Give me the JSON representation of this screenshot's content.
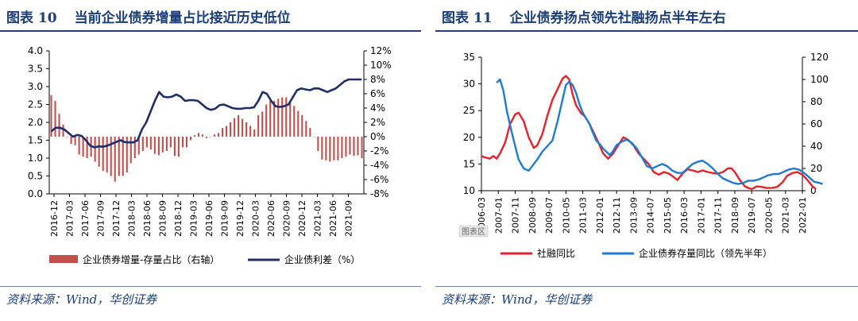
{
  "colors": {
    "title": "#1a3f7a",
    "bar": "#c0504d",
    "line_navy": "#1f2d6b",
    "line_red": "#e8202a",
    "line_blue": "#1f7ad0",
    "watermark_bg": "#e8e8e8"
  },
  "left": {
    "figure_no": "图表 10",
    "title": "当前企业债券增量占比接近历史低位",
    "source": "资料来源：Wind，华创证券"
  },
  "right": {
    "figure_no": "图表 11",
    "title": "企业债券扬点领先社融扬点半年左右",
    "source": "资料来源：Wind，华创证券",
    "watermark": "图表区"
  },
  "chart_data": [
    {
      "type": "bar+line",
      "title": "当前企业债券增量占比接近历史低位",
      "x_tick_labels": [
        "2016-12",
        "2017-03",
        "2017-06",
        "2017-09",
        "2017-12",
        "2018-03",
        "2018-06",
        "2018-09",
        "2018-12",
        "2019-03",
        "2019-06",
        "2019-09",
        "2019-12",
        "2020-03",
        "2020-06",
        "2020-09",
        "2020-12",
        "2021-03",
        "2021-06",
        "2021-09"
      ],
      "x_start": "2016-12",
      "left_axis": {
        "range": [
          0.0,
          4.0
        ],
        "ticks": [
          "0.0",
          "0.5",
          "1.0",
          "1.5",
          "2.0",
          "2.5",
          "3.0",
          "3.5",
          "4.0"
        ]
      },
      "right_axis": {
        "range": [
          -8,
          12
        ],
        "ticks": [
          "-8%",
          "-6%",
          "-4%",
          "-2%",
          "0%",
          "2%",
          "4%",
          "6%",
          "8%",
          "10%",
          "12%"
        ]
      },
      "series": [
        {
          "name": "企业债券增量-存量占比（右轴）",
          "type": "bar",
          "axis": "right",
          "unit": "%",
          "values": [
            5.8,
            5.0,
            3.2,
            1.7,
            0.0,
            -1.0,
            -1.2,
            -2.5,
            -2.8,
            -3.0,
            -2.8,
            -3.5,
            -4.2,
            -4.8,
            -5.0,
            -5.5,
            -6.3,
            -5.5,
            -5.5,
            -5.0,
            -3.7,
            -3.0,
            -2.5,
            -2.0,
            -1.5,
            -1.8,
            -2.4,
            -2.6,
            -2.2,
            -2.0,
            -1.5,
            -2.7,
            -2.8,
            -1.5,
            -1.5,
            -0.5,
            0.2,
            0.5,
            0.3,
            -0.2,
            0.0,
            0.3,
            0.5,
            1.2,
            1.5,
            2.0,
            2.6,
            3.0,
            2.5,
            2.0,
            1.5,
            1.0,
            3.0,
            3.5,
            4.5,
            5.0,
            5.0,
            5.3,
            5.5,
            5.5,
            5.0,
            4.3,
            3.6,
            3.0,
            2.2,
            1.2,
            0.0,
            -2.0,
            -3.2,
            -3.3,
            -3.5,
            -3.3,
            -3.3,
            -3.0,
            -2.8,
            -2.5,
            -2.7,
            -2.6,
            -3.0
          ]
        },
        {
          "name": "企业债利差（%）",
          "type": "line",
          "axis": "left",
          "unit": "%",
          "values": [
            1.75,
            1.85,
            1.85,
            1.8,
            1.7,
            1.6,
            1.65,
            1.62,
            1.5,
            1.35,
            1.3,
            1.33,
            1.32,
            1.35,
            1.4,
            1.45,
            1.5,
            1.45,
            1.44,
            1.44,
            1.5,
            1.8,
            2.0,
            2.3,
            2.6,
            2.85,
            2.72,
            2.7,
            2.72,
            2.78,
            2.72,
            2.6,
            2.62,
            2.62,
            2.6,
            2.5,
            2.4,
            2.35,
            2.38,
            2.48,
            2.5,
            2.45,
            2.4,
            2.38,
            2.38,
            2.4,
            2.4,
            2.42,
            2.6,
            2.85,
            2.8,
            2.6,
            2.45,
            2.43,
            2.45,
            2.5,
            2.7,
            2.9,
            2.95,
            2.92,
            2.9,
            2.95,
            2.95,
            2.9,
            2.85,
            2.9,
            2.95,
            3.05,
            3.15,
            3.2,
            3.2,
            3.2,
            3.2
          ]
        }
      ]
    },
    {
      "type": "line",
      "title": "企业债券扬点领先社融扬点半年左右",
      "x_tick_labels": [
        "2006-03",
        "2007-01",
        "2007-11",
        "2008-09",
        "2009-07",
        "2010-05",
        "2011-03",
        "2012-01",
        "2012-11",
        "2013-09",
        "2014-07",
        "2015-05",
        "2016-03",
        "2017-01",
        "2017-11",
        "2018-09",
        "2019-07",
        "2020-05",
        "2021-03",
        "2022-01"
      ],
      "left_axis": {
        "range": [
          10,
          35
        ],
        "ticks": [
          "10",
          "15",
          "20",
          "25",
          "30",
          "35"
        ]
      },
      "right_axis": {
        "range": [
          0,
          120
        ],
        "ticks": [
          "0",
          "20",
          "40",
          "60",
          "80",
          "100",
          "120"
        ]
      },
      "series": [
        {
          "name": "社融同比",
          "axis": "left",
          "points": [
            [
              0,
              16.5
            ],
            [
              0.15,
              16.3
            ],
            [
              0.5,
              16
            ],
            [
              0.7,
              16.5
            ],
            [
              0.9,
              16
            ],
            [
              1.1,
              17
            ],
            [
              1.4,
              19
            ],
            [
              1.7,
              22.5
            ],
            [
              2.0,
              24.3
            ],
            [
              2.2,
              24.6
            ],
            [
              2.5,
              23
            ],
            [
              2.8,
              20
            ],
            [
              3.1,
              18
            ],
            [
              3.3,
              18.5
            ],
            [
              3.6,
              20.5
            ],
            [
              3.9,
              24
            ],
            [
              4.2,
              27
            ],
            [
              4.5,
              29
            ],
            [
              4.8,
              31
            ],
            [
              5.0,
              31.5
            ],
            [
              5.2,
              30.8
            ],
            [
              5.4,
              28
            ],
            [
              5.6,
              26
            ],
            [
              5.9,
              24.5
            ],
            [
              6.1,
              24
            ],
            [
              6.4,
              22.5
            ],
            [
              6.7,
              20.5
            ],
            [
              7.0,
              18.5
            ],
            [
              7.2,
              17
            ],
            [
              7.5,
              16
            ],
            [
              7.8,
              17
            ],
            [
              8.1,
              18.5
            ],
            [
              8.4,
              20
            ],
            [
              8.7,
              19.5
            ],
            [
              9.0,
              18.5
            ],
            [
              9.3,
              17
            ],
            [
              9.6,
              16
            ],
            [
              9.9,
              15
            ],
            [
              10.2,
              13.5
            ],
            [
              10.5,
              13
            ],
            [
              10.8,
              13.5
            ],
            [
              11.1,
              13.2
            ],
            [
              11.4,
              12.5
            ],
            [
              11.6,
              12
            ],
            [
              11.9,
              13.2
            ],
            [
              12.2,
              14
            ],
            [
              12.5,
              13.8
            ],
            [
              12.8,
              13.5
            ],
            [
              13.1,
              13.8
            ],
            [
              13.4,
              13.5
            ],
            [
              13.7,
              13.3
            ],
            [
              14.0,
              13.2
            ],
            [
              14.3,
              13.5
            ],
            [
              14.6,
              14.2
            ],
            [
              14.8,
              14.2
            ],
            [
              15.0,
              13.5
            ],
            [
              15.3,
              12
            ],
            [
              15.6,
              10.8
            ],
            [
              15.8,
              10.5
            ],
            [
              16.0,
              10.3
            ],
            [
              16.3,
              10.8
            ],
            [
              16.6,
              10.7
            ],
            [
              16.9,
              10.5
            ],
            [
              17.2,
              10.5
            ],
            [
              17.5,
              10.7
            ],
            [
              17.8,
              11.5
            ],
            [
              18.1,
              12.8
            ],
            [
              18.4,
              13.3
            ],
            [
              18.7,
              13.5
            ],
            [
              19.0,
              13
            ],
            [
              19.3,
              12
            ],
            [
              19.6,
              10.8
            ],
            [
              19.8,
              10.3
            ]
          ]
        },
        {
          "name": "企业债券存量同比（领先半年）",
          "axis": "right",
          "points": [
            [
              0.9,
              97
            ],
            [
              1.1,
              100
            ],
            [
              1.3,
              90
            ],
            [
              1.5,
              72
            ],
            [
              1.8,
              52
            ],
            [
              2.0,
              40
            ],
            [
              2.2,
              28
            ],
            [
              2.5,
              20
            ],
            [
              2.8,
              18
            ],
            [
              3.0,
              22
            ],
            [
              3.3,
              28
            ],
            [
              3.6,
              35
            ],
            [
              3.9,
              40
            ],
            [
              4.2,
              45
            ],
            [
              4.5,
              62
            ],
            [
              4.8,
              82
            ],
            [
              5.0,
              95
            ],
            [
              5.2,
              98
            ],
            [
              5.4,
              95
            ],
            [
              5.6,
              88
            ],
            [
              5.8,
              78
            ],
            [
              6.0,
              70
            ],
            [
              6.2,
              65
            ],
            [
              6.4,
              60
            ],
            [
              6.6,
              52
            ],
            [
              6.8,
              45
            ],
            [
              7.0,
              42
            ],
            [
              7.2,
              38
            ],
            [
              7.4,
              35
            ],
            [
              7.6,
              32
            ],
            [
              7.8,
              36
            ],
            [
              8.0,
              41
            ],
            [
              8.3,
              44
            ],
            [
              8.6,
              46
            ],
            [
              8.9,
              43
            ],
            [
              9.2,
              38
            ],
            [
              9.5,
              30
            ],
            [
              9.8,
              22
            ],
            [
              10.1,
              20
            ],
            [
              10.4,
              22
            ],
            [
              10.7,
              24
            ],
            [
              11.0,
              22
            ],
            [
              11.3,
              18
            ],
            [
              11.6,
              16
            ],
            [
              11.9,
              16
            ],
            [
              12.2,
              20
            ],
            [
              12.5,
              24
            ],
            [
              12.8,
              26
            ],
            [
              13.1,
              27
            ],
            [
              13.4,
              24
            ],
            [
              13.7,
              20
            ],
            [
              14.0,
              15
            ],
            [
              14.3,
              11
            ],
            [
              14.6,
              9
            ],
            [
              14.9,
              7
            ],
            [
              15.2,
              6
            ],
            [
              15.5,
              7
            ],
            [
              15.8,
              9
            ],
            [
              16.1,
              9
            ],
            [
              16.4,
              10
            ],
            [
              16.7,
              12
            ],
            [
              17.0,
              14
            ],
            [
              17.3,
              15
            ],
            [
              17.6,
              15
            ],
            [
              17.9,
              17
            ],
            [
              18.2,
              19
            ],
            [
              18.5,
              20
            ],
            [
              18.8,
              19
            ],
            [
              19.1,
              16
            ],
            [
              19.4,
              12
            ],
            [
              19.7,
              8
            ],
            [
              20.0,
              7
            ],
            [
              20.2,
              6
            ]
          ]
        }
      ]
    }
  ],
  "legends": {
    "left": [
      "企业债券增量-存量占比（右轴）",
      "企业债利差（%）"
    ],
    "right": [
      "社融同比",
      "企业债券存量同比（领先半年）"
    ]
  }
}
